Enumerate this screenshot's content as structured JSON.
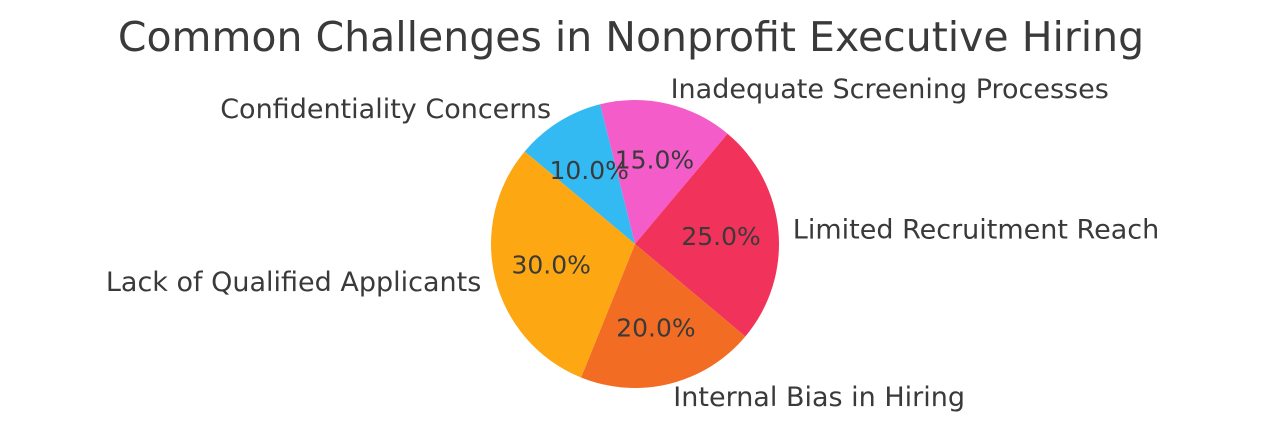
{
  "title": "Common Challenges in Nonprofit Executive Hiring",
  "chart_data": {
    "type": "pie",
    "title": "Common Challenges in Nonprofit Executive Hiring",
    "slices": [
      {
        "label": "Lack of Qualified Applicants",
        "value": 30.0,
        "pct_label": "30.0%",
        "color": "#FDA712"
      },
      {
        "label": "Internal Bias in Hiring",
        "value": 20.0,
        "pct_label": "20.0%",
        "color": "#F36C23"
      },
      {
        "label": "Limited Recruitment Reach",
        "value": 25.0,
        "pct_label": "25.0%",
        "color": "#F1335B"
      },
      {
        "label": "Inadequate Screening Processes",
        "value": 15.0,
        "pct_label": "15.0%",
        "color": "#F45CC9"
      },
      {
        "label": "Confidentiality Concerns",
        "value": 10.0,
        "pct_label": "10.0%",
        "color": "#33BAF2"
      }
    ],
    "start_angle_deg": 140,
    "counterclock": true,
    "pct_distance": 0.6,
    "label_distance": 1.1,
    "legend": "none",
    "background_color": "#FFFFFF",
    "text_color": "#3A3A3A"
  }
}
